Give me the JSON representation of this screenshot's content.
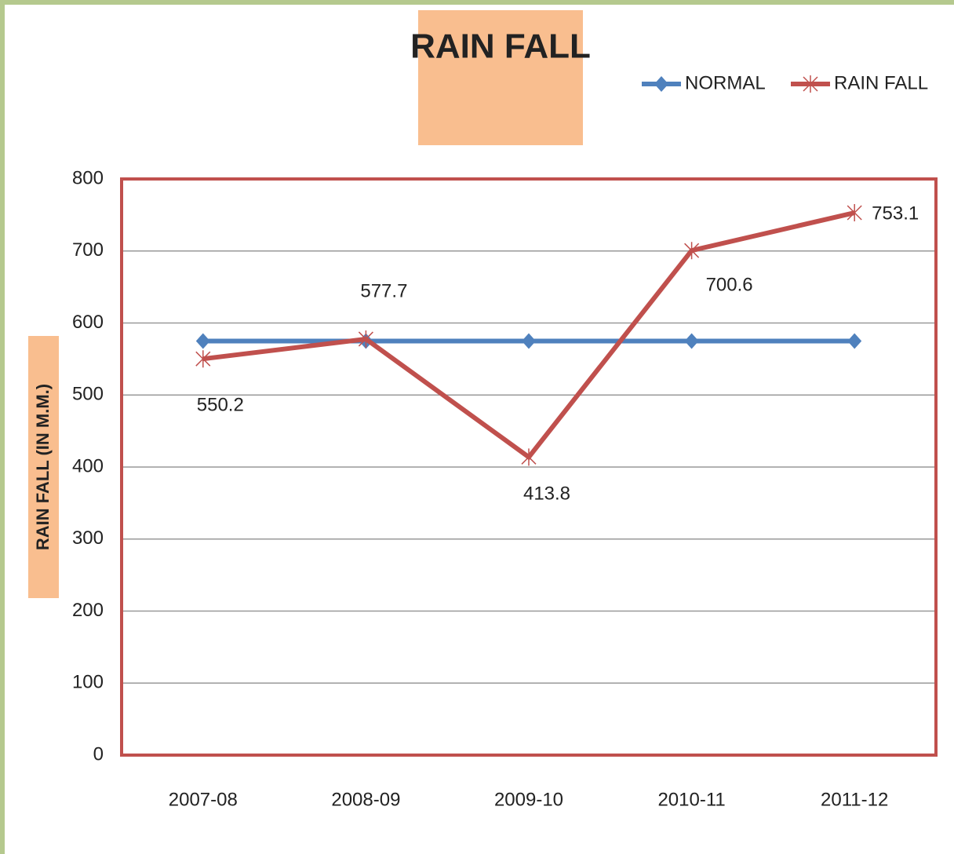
{
  "chart_data": {
    "type": "line",
    "title": "RAIN FALL",
    "y_label": "RAIN FALL (IN M.M.)",
    "categories": [
      "2007-08",
      "2008-09",
      "2009-10",
      "2010-11",
      "2011-12"
    ],
    "series": [
      {
        "name": "NORMAL",
        "color": "#4f81bd",
        "marker": "diamond",
        "values": [
          575,
          575,
          575,
          575,
          575
        ]
      },
      {
        "name": "RAIN FALL",
        "color": "#c0504d",
        "marker": "asterisk",
        "values": [
          550.2,
          577.7,
          413.8,
          700.6,
          753.1
        ],
        "data_labels": true
      }
    ],
    "ylim": [
      0,
      800
    ],
    "yticks": [
      0,
      100,
      200,
      300,
      400,
      500,
      600,
      700,
      800
    ],
    "grid": true,
    "legend": "top-right"
  }
}
